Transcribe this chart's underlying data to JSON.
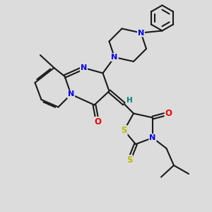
{
  "background_color": "#dcdcdc",
  "bond_color": "#1a1a1a",
  "atom_colors": {
    "N": "#0000ee",
    "O": "#ee0000",
    "S": "#bbbb00",
    "C": "#1a1a1a",
    "H": "#008080"
  },
  "figsize": [
    3.0,
    3.0
  ],
  "dpi": 100
}
